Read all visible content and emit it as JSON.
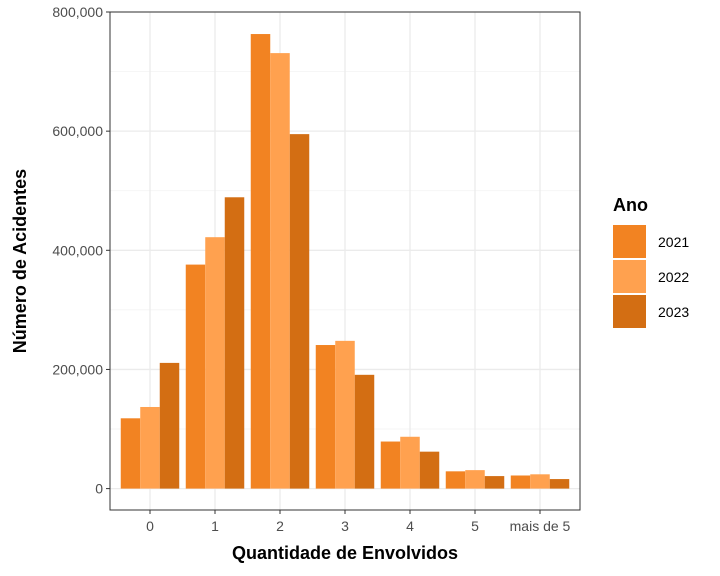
{
  "chart_data": {
    "type": "bar",
    "title": "",
    "xlabel": "Quantidade de Envolvidos",
    "ylabel": "Número de Acidentes",
    "categories": [
      "0",
      "1",
      "2",
      "3",
      "4",
      "5",
      "mais de 5"
    ],
    "series": [
      {
        "name": "2021",
        "color": "#F28322",
        "values": [
          118000,
          376000,
          763000,
          241000,
          79000,
          29000,
          22000
        ]
      },
      {
        "name": "2022",
        "color": "#FFA14F",
        "values": [
          137000,
          422000,
          731000,
          248000,
          87000,
          31000,
          24000
        ]
      },
      {
        "name": "2023",
        "color": "#D36E13",
        "values": [
          211000,
          489000,
          595000,
          191000,
          62000,
          21000,
          16000
        ]
      }
    ],
    "ylim": [
      0,
      800000
    ],
    "y_ticks": [
      0,
      200000,
      400000,
      600000,
      800000
    ],
    "y_tick_labels": [
      "0",
      "200,000",
      "400,000",
      "600,000",
      "800,000"
    ],
    "legend": {
      "title": "Ano",
      "position": "right"
    },
    "grid": true
  }
}
